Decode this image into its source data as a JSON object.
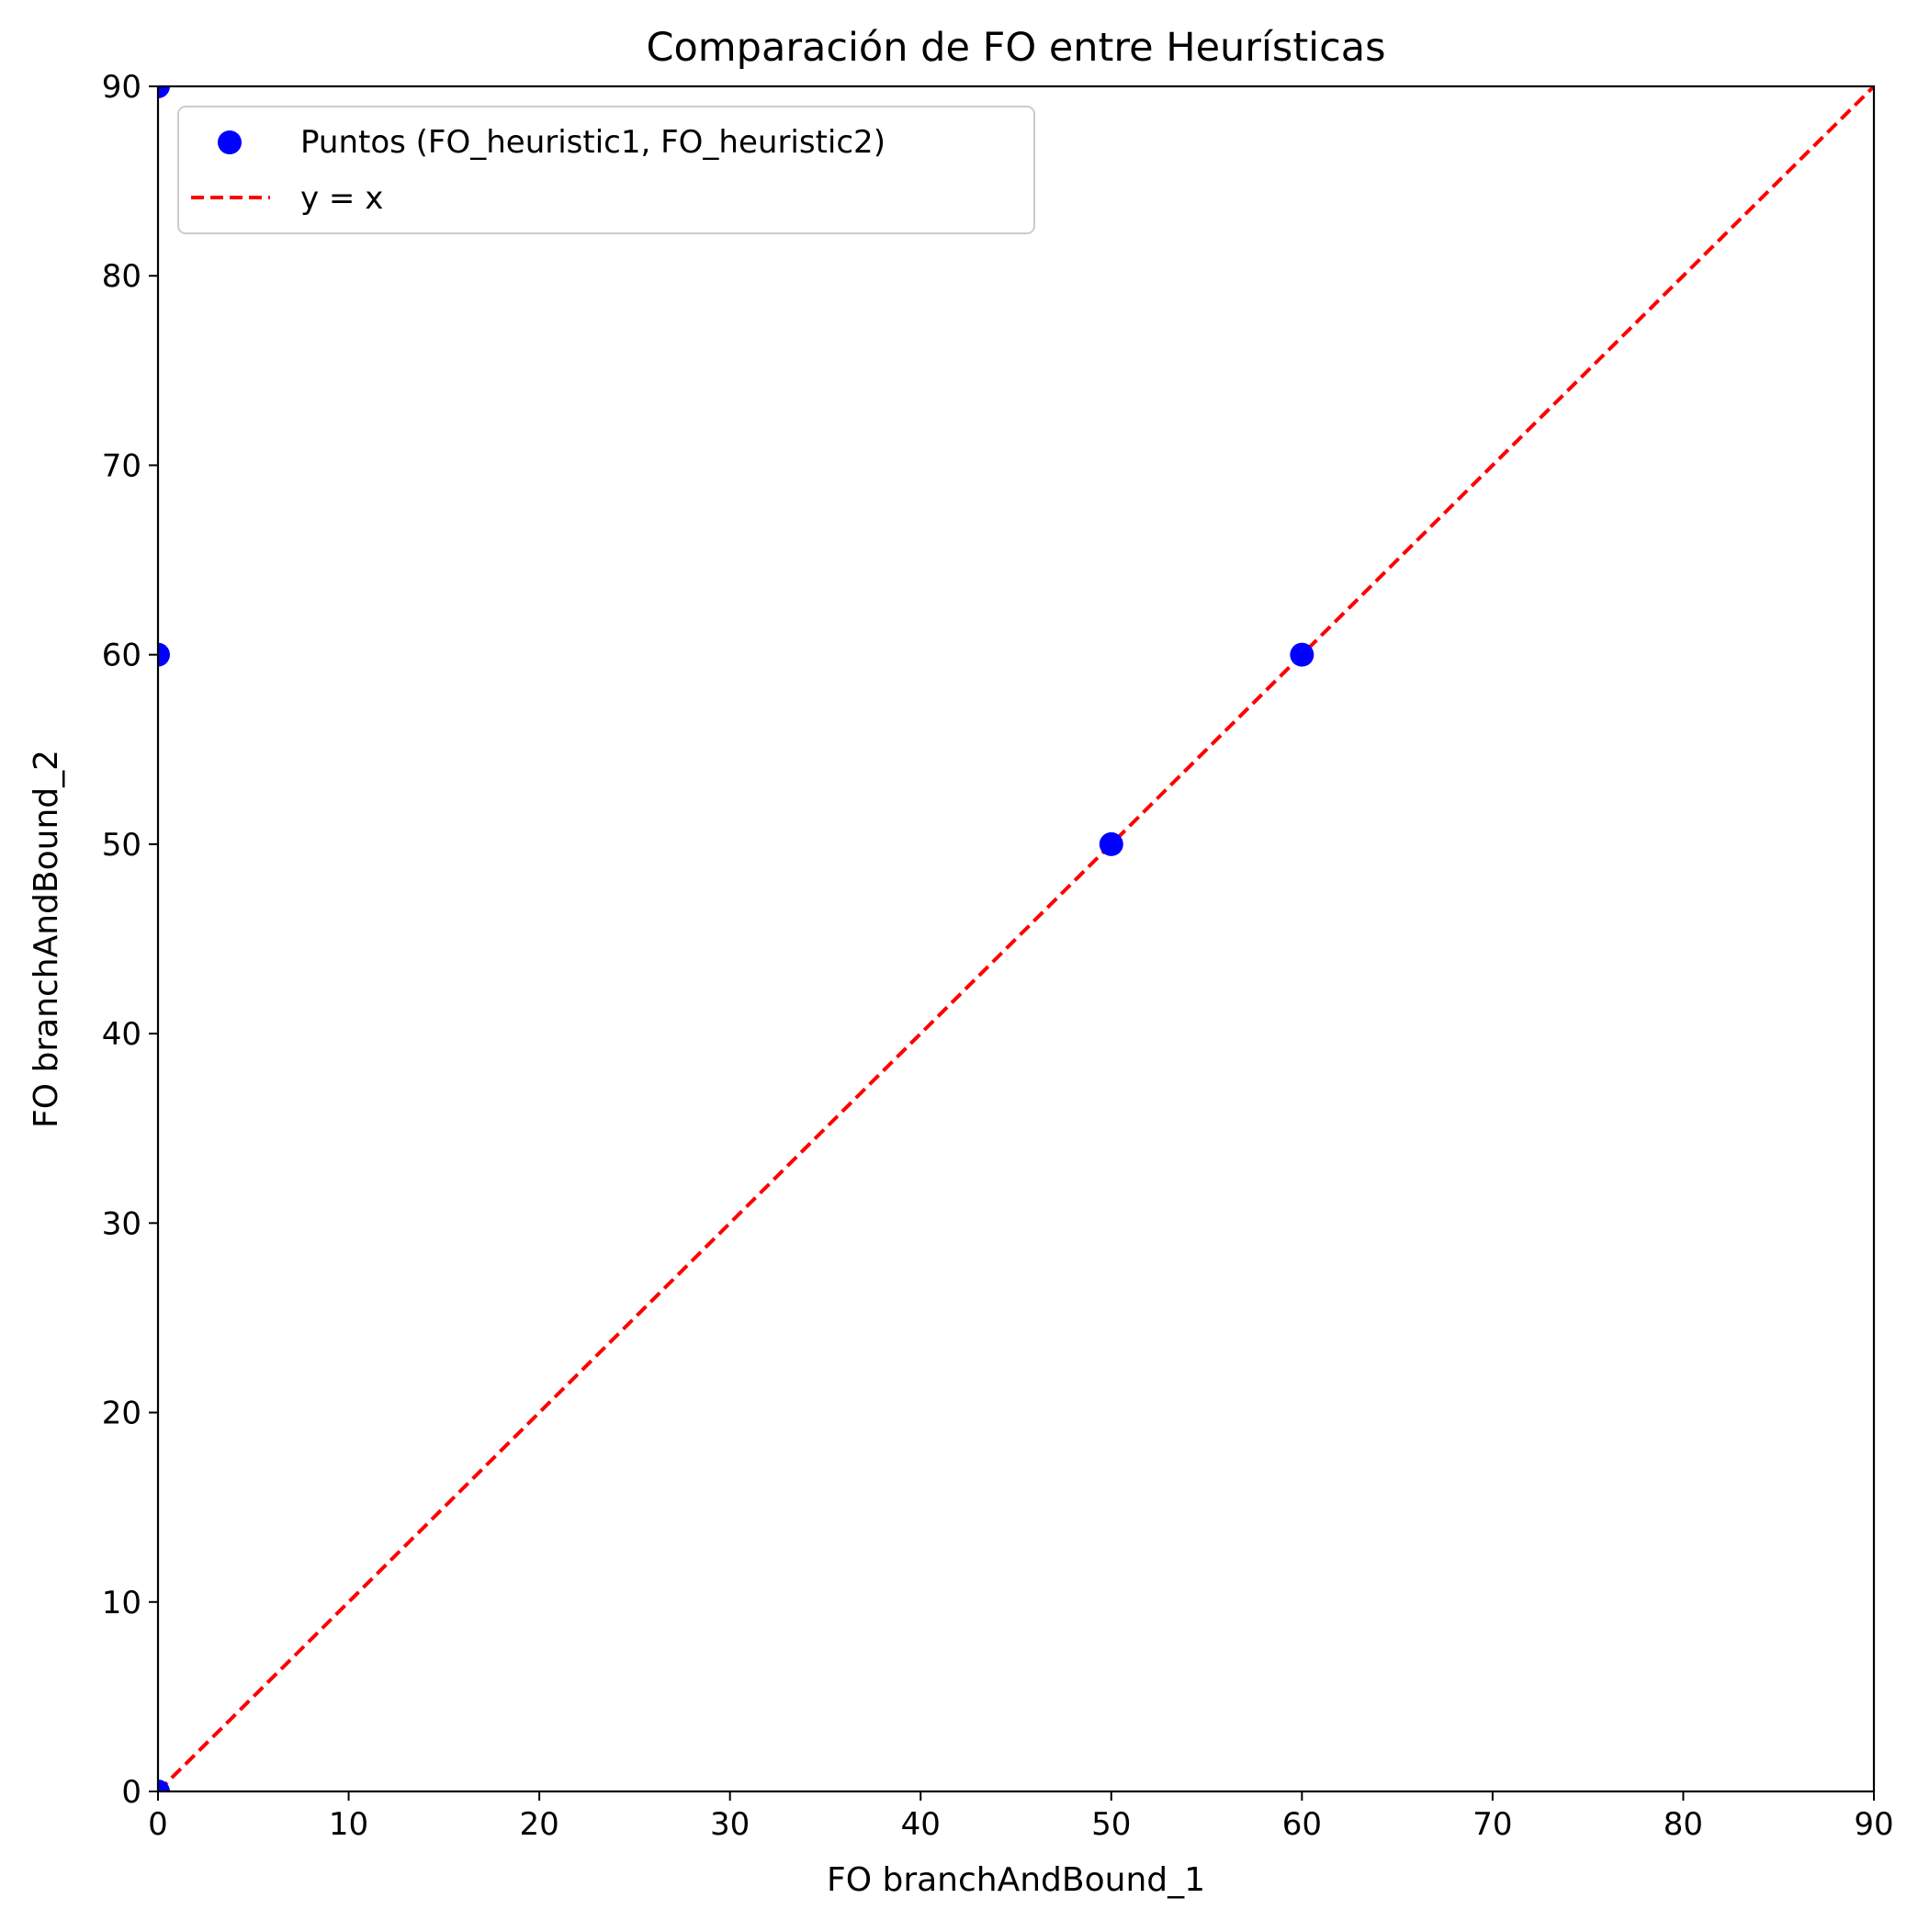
{
  "chart_data": {
    "type": "scatter",
    "title": "Comparación de FO entre Heurísticas",
    "xlabel": "FO branchAndBound_1",
    "ylabel": "FO branchAndBound_2",
    "xlim": [
      0,
      90
    ],
    "ylim": [
      0,
      90
    ],
    "xticks": [
      0,
      10,
      20,
      30,
      40,
      50,
      60,
      70,
      80,
      90
    ],
    "yticks": [
      0,
      10,
      20,
      30,
      40,
      50,
      60,
      70,
      80,
      90
    ],
    "grid": false,
    "legend_position": "top-left",
    "series": [
      {
        "name": "Puntos (FO_heuristic1, FO_heuristic2)",
        "kind": "scatter",
        "color": "#0000ff",
        "points": [
          {
            "x": 0,
            "y": 90
          },
          {
            "x": 0,
            "y": 60
          },
          {
            "x": 0,
            "y": 0
          },
          {
            "x": 50,
            "y": 50
          },
          {
            "x": 60,
            "y": 60
          }
        ]
      },
      {
        "name": "y = x",
        "kind": "line",
        "style": "dashed",
        "color": "#ff0000",
        "points": [
          {
            "x": 0,
            "y": 0
          },
          {
            "x": 90,
            "y": 90
          }
        ]
      }
    ]
  }
}
